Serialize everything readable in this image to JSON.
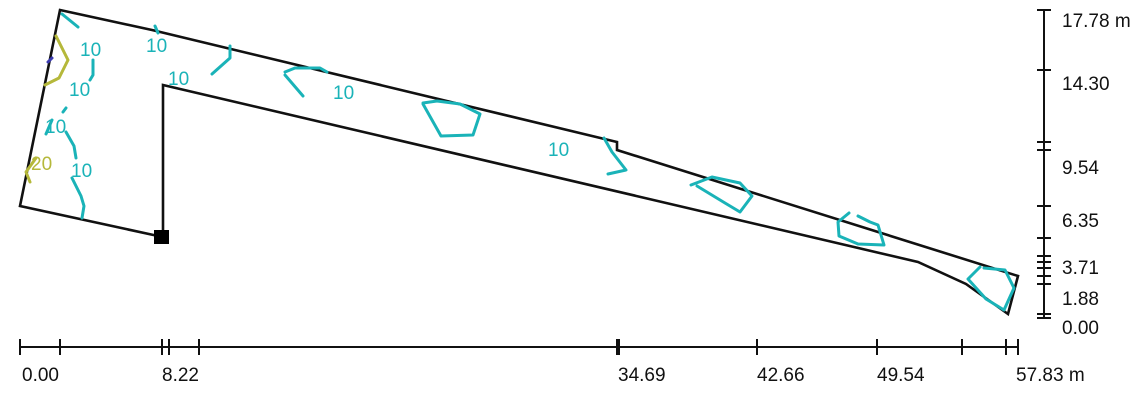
{
  "plan": {
    "colors": {
      "outline": "#111111",
      "contour_10": "#1ab3b8",
      "contour_20": "#b5b83a",
      "contour_30": "#3b3bb0",
      "axis": "#111111"
    },
    "contour_labels": [
      "10",
      "10",
      "10",
      "10",
      "10",
      "10",
      "10",
      "10",
      "20"
    ],
    "bottom_axis": {
      "unit": "m",
      "labels": [
        "0.00",
        "8.22",
        "34.69",
        "42.66",
        "49.54",
        "57.83 m"
      ]
    },
    "right_axis": {
      "unit": "m",
      "labels": [
        "17.78 m",
        "14.30",
        "9.54",
        "6.35",
        "3.71",
        "1.88",
        "0.00"
      ]
    },
    "luminaire_marker": "square-marker"
  }
}
